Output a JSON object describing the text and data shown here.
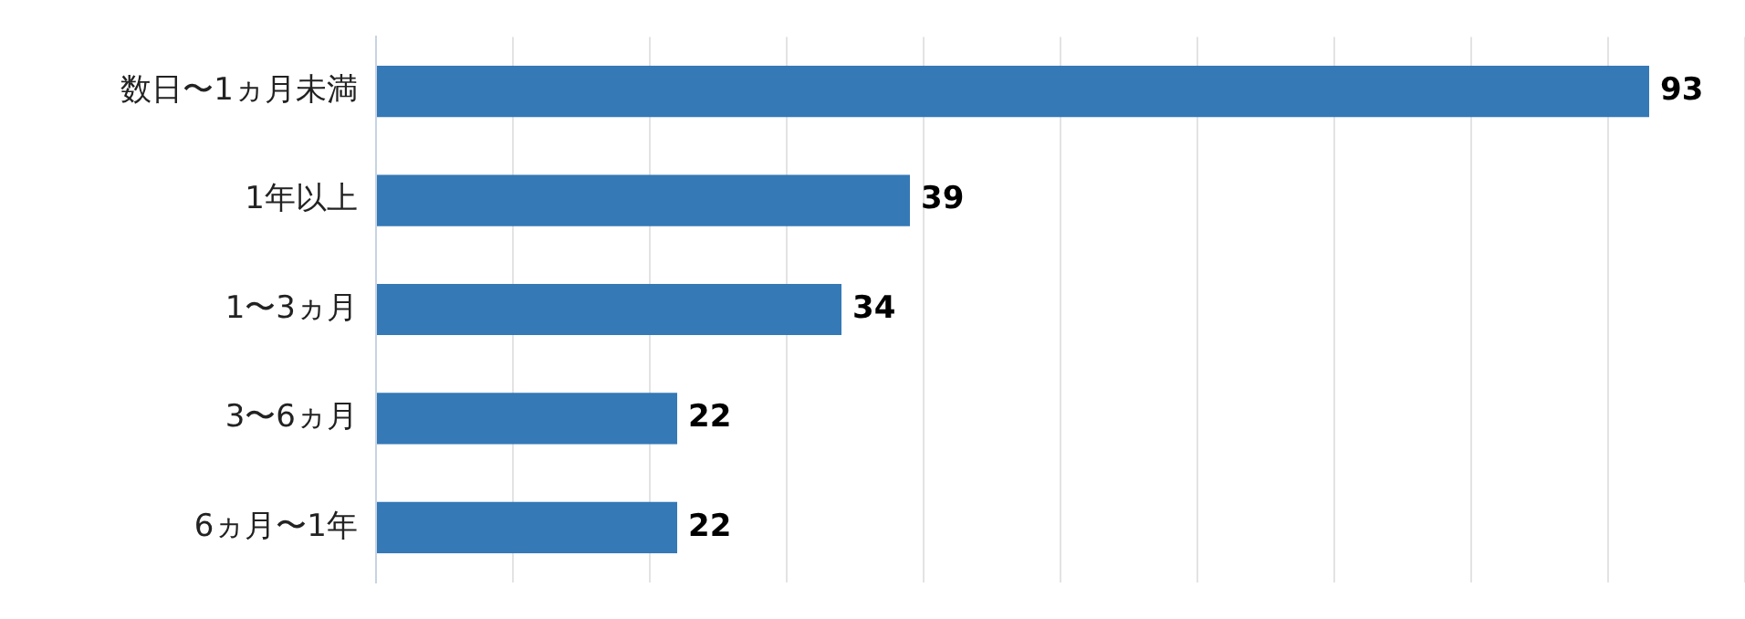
{
  "chart_data": {
    "type": "bar",
    "orientation": "horizontal",
    "categories": [
      "数日〜1ヵ月未満",
      "1年以上",
      "1〜3ヵ月",
      "3〜6ヵ月",
      "6ヵ月〜1年"
    ],
    "values": [
      93,
      39,
      34,
      22,
      22
    ],
    "color": "#3579b6",
    "xlim": [
      0,
      100
    ],
    "xticks": [
      {
        "value": 0,
        "label": null
      },
      {
        "value": 10,
        "label": null
      },
      {
        "value": 20,
        "label": null
      },
      {
        "value": 30,
        "label": null
      },
      {
        "value": 40,
        "label": null
      },
      {
        "value": 50,
        "label": null
      },
      {
        "value": 60,
        "label": null
      },
      {
        "value": 70,
        "label": null
      },
      {
        "value": 80,
        "label": null
      },
      {
        "value": 90,
        "label": null
      },
      {
        "value": 100,
        "label": null
      }
    ],
    "grid": "x",
    "tick_labels": "y",
    "data_labels": true,
    "legend": false
  }
}
